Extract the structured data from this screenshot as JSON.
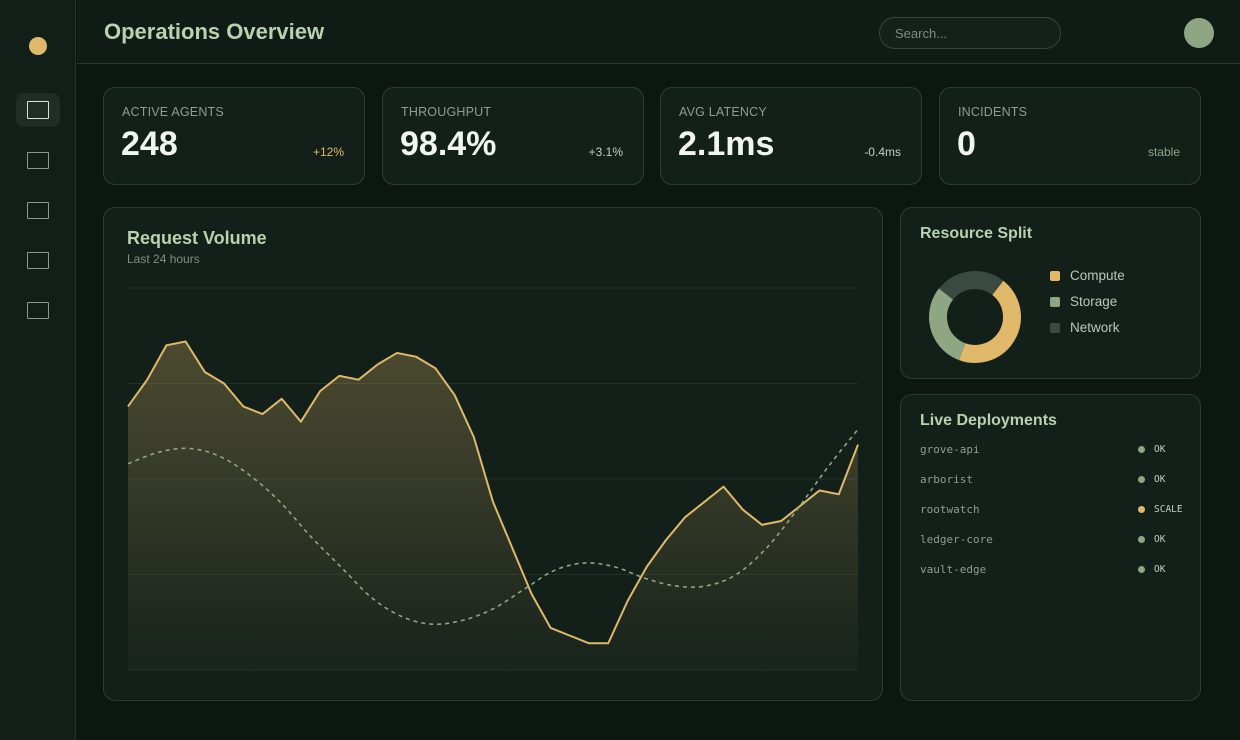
{
  "header": {
    "title": "Operations Overview",
    "search_placeholder": "Search..."
  },
  "sidebar": {
    "items": [
      {
        "icon": "dashboard-icon",
        "active": true
      },
      {
        "icon": "panel-icon",
        "active": false
      },
      {
        "icon": "panel-icon",
        "active": false
      },
      {
        "icon": "panel-icon",
        "active": false
      },
      {
        "icon": "panel-icon",
        "active": false
      }
    ]
  },
  "kpis": [
    {
      "label": "ACTIVE AGENTS",
      "value": "248",
      "delta": "+12%",
      "delta_color": "#e0b86a"
    },
    {
      "label": "THROUGHPUT",
      "value": "98.4%",
      "delta": "+3.1%",
      "delta_color": "#c3cfc4"
    },
    {
      "label": "AVG LATENCY",
      "value": "2.1ms",
      "delta": "-0.4ms",
      "delta_color": "#c3cfc4"
    },
    {
      "label": "INCIDENTS",
      "value": "0",
      "delta": "stable",
      "delta_color": "#8fa682"
    }
  ],
  "request_volume": {
    "title": "Request Volume",
    "subtitle": "Last 24 hours"
  },
  "chart_data": {
    "type": "area",
    "title": "Request Volume",
    "subtitle": "Last 24 hours",
    "ylim": [
      0,
      100
    ],
    "grid": true,
    "series": [
      {
        "style": "solid-area",
        "color": "#e0b86a",
        "values": [
          69,
          76,
          85,
          86,
          78,
          75,
          69,
          67,
          71,
          65,
          73,
          77,
          76,
          80,
          83,
          82,
          79,
          72,
          61,
          44,
          32,
          20,
          11,
          9,
          7,
          7,
          18,
          27,
          34,
          40,
          44,
          48,
          42,
          38,
          39,
          43,
          47,
          46,
          59
        ]
      },
      {
        "style": "dashed",
        "color": "#8fa682",
        "values": [
          54,
          57,
          58,
          56,
          51,
          44,
          35,
          27,
          19,
          14,
          12,
          13,
          16,
          21,
          26,
          28,
          27,
          24,
          22,
          22,
          25,
          32,
          42,
          53,
          63
        ]
      }
    ]
  },
  "resource_split": {
    "title": "Resource Split",
    "chart_data": {
      "type": "pie",
      "slices": [
        {
          "name": "Compute",
          "value": 45,
          "color": "#e0b86a"
        },
        {
          "name": "Storage",
          "value": 30,
          "color": "#8fa682"
        },
        {
          "name": "Network",
          "value": 25,
          "color": "#3a4a40"
        }
      ]
    }
  },
  "deployments": {
    "title": "Live Deployments",
    "items": [
      {
        "name": "grove-api",
        "status": "OK",
        "color": "#8fa682"
      },
      {
        "name": "arborist",
        "status": "OK",
        "color": "#8fa682"
      },
      {
        "name": "rootwatch",
        "status": "SCALE",
        "color": "#e0b86a"
      },
      {
        "name": "ledger-core",
        "status": "OK",
        "color": "#8fa682"
      },
      {
        "name": "vault-edge",
        "status": "OK",
        "color": "#8fa682"
      }
    ]
  }
}
